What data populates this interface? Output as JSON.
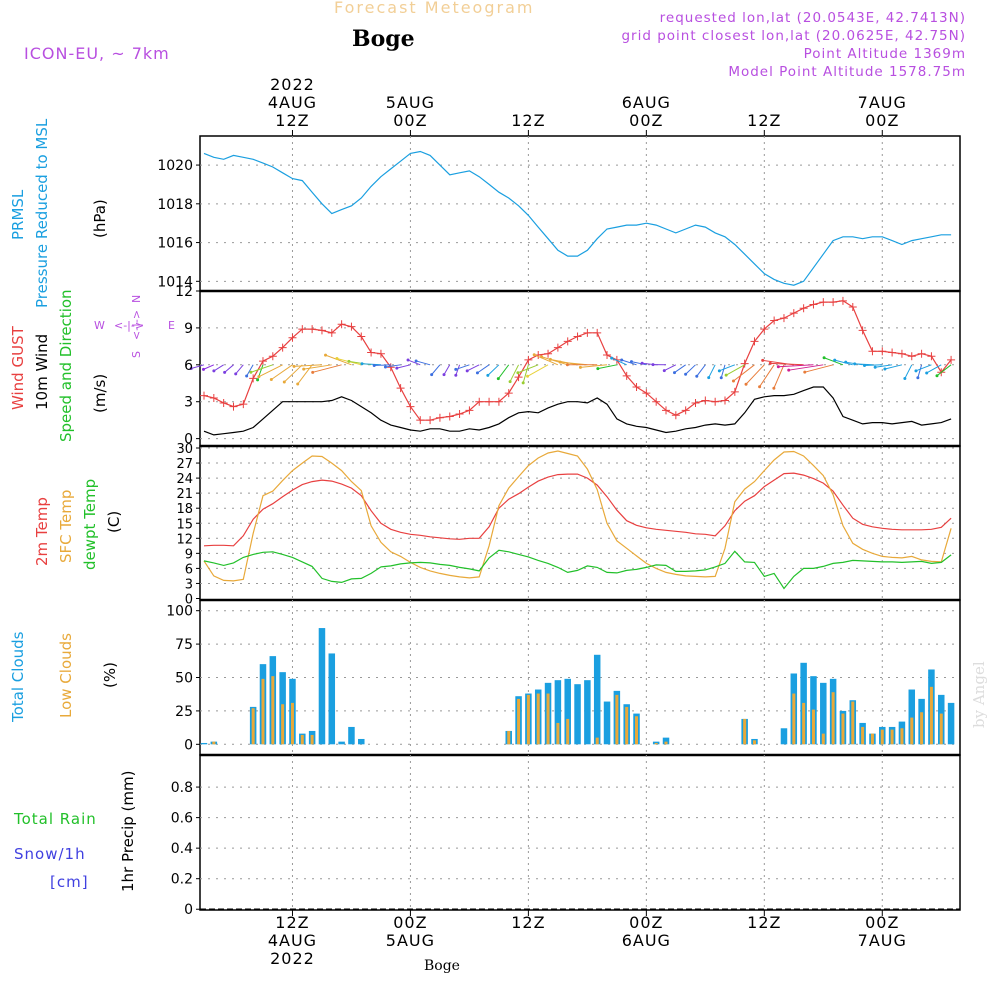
{
  "header": {
    "title": "Forecast Meteogram",
    "location": "Boge",
    "model": "ICON-EU, ~ 7km",
    "requested": "requested lon,lat (20.0543E, 42.7413N)",
    "grid_point": "grid point closest lon,lat (20.0625E, 42.75N)",
    "point_altitude": "Point Altitude 1369m",
    "model_altitude": "Model Point Altitude 1578.75m"
  },
  "top_axis": {
    "labels": [
      {
        "lines": [
          "2022",
          "4AUG",
          "12Z"
        ]
      },
      {
        "lines": [
          "5AUG",
          "00Z"
        ]
      },
      {
        "lines": [
          "12Z"
        ]
      },
      {
        "lines": [
          "6AUG",
          "00Z"
        ]
      },
      {
        "lines": [
          "12Z"
        ]
      },
      {
        "lines": [
          "7AUG",
          "00Z"
        ]
      }
    ]
  },
  "bottom_axis": {
    "labels": [
      {
        "lines": [
          "12Z",
          "4AUG",
          "2022"
        ]
      },
      {
        "lines": [
          "00Z",
          "5AUG"
        ]
      },
      {
        "lines": [
          "12Z"
        ]
      },
      {
        "lines": [
          "00Z",
          "6AUG"
        ]
      },
      {
        "lines": [
          "12Z"
        ]
      },
      {
        "lines": [
          "00Z",
          "7AUG"
        ]
      }
    ],
    "location": "Boge"
  },
  "panel_labels": {
    "pressure": [
      {
        "text": "PRMSL",
        "color": "#1a9fe0"
      },
      {
        "text": "Pressure Reduced to MSL",
        "color": "#1a9fe0"
      },
      {
        "text": "(hPa)",
        "color": "#000000"
      }
    ],
    "wind": [
      {
        "text": "Wind GUST",
        "color": "#e84040"
      },
      {
        "text": "10m Wind",
        "color": "#000000"
      },
      {
        "text": "Speed and Direction",
        "color": "#22c02a"
      },
      {
        "text": "(m/s)",
        "color": "#000000"
      }
    ],
    "wind_compass": {
      "n": "N",
      "s": "S",
      "w": "W",
      "e": "E",
      "arrow_h": "<-|->",
      "arrow_v": "<-|->",
      "color": "#b84fe0"
    },
    "temp": [
      {
        "text": "2m Temp",
        "color": "#e84040"
      },
      {
        "text": "SFC Temp",
        "color": "#e8a93a"
      },
      {
        "text": "dewpt Temp",
        "color": "#22c02a"
      },
      {
        "text": "(C)",
        "color": "#000000"
      }
    ],
    "clouds": [
      {
        "text": "Total Clouds",
        "color": "#1a9fe0"
      },
      {
        "text": "Low Clouds",
        "color": "#e8a93a"
      },
      {
        "text": "(%)",
        "color": "#000000"
      }
    ],
    "precip_left": [
      {
        "text": "Total  Rain",
        "color": "#22c02a"
      },
      {
        "text": "Snow/1h",
        "color": "#4040e0"
      },
      {
        "text": "[cm]",
        "color": "#4040e0"
      }
    ],
    "precip_axis": {
      "text": "1hr Precip (mm)",
      "color": "#000000"
    }
  },
  "watermark": "by Angel",
  "chart_data": [
    {
      "type": "line",
      "name": "pressure",
      "x_hours": [
        0,
        1,
        2,
        3,
        4,
        5,
        6,
        7,
        8,
        9,
        10,
        11,
        12,
        13,
        14,
        15,
        16,
        17,
        18,
        19,
        20,
        21,
        22,
        23,
        24,
        25,
        26,
        27,
        28,
        29,
        30,
        31,
        32,
        33,
        34,
        35,
        36,
        37,
        38,
        39,
        40,
        41,
        42,
        43,
        44,
        45,
        46,
        47,
        48,
        49,
        50,
        51,
        52,
        53,
        54,
        55,
        56,
        57,
        58,
        59,
        60,
        61,
        62,
        63,
        64,
        65,
        66,
        67,
        68,
        69,
        70,
        71,
        72,
        73,
        74,
        75,
        76
      ],
      "series": [
        {
          "name": "PRMSL",
          "color": "#1a9fe0",
          "values": [
            1020.6,
            1020.4,
            1020.3,
            1020.5,
            1020.4,
            1020.3,
            1020.1,
            1019.9,
            1019.6,
            1019.3,
            1019.2,
            1018.6,
            1018.0,
            1017.5,
            1017.7,
            1017.9,
            1018.3,
            1018.9,
            1019.4,
            1019.8,
            1020.2,
            1020.6,
            1020.7,
            1020.5,
            1020.0,
            1019.5,
            1019.6,
            1019.7,
            1019.4,
            1019.0,
            1018.6,
            1018.3,
            1017.9,
            1017.4,
            1016.8,
            1016.2,
            1015.6,
            1015.3,
            1015.3,
            1015.6,
            1016.2,
            1016.7,
            1016.8,
            1016.9,
            1016.9,
            1017.0,
            1016.9,
            1016.7,
            1016.5,
            1016.7,
            1016.9,
            1016.8,
            1016.5,
            1016.3,
            1015.9,
            1015.4,
            1014.9,
            1014.4,
            1014.1,
            1013.9,
            1013.8,
            1014.0,
            1014.7,
            1015.4,
            1016.1,
            1016.3,
            1016.3,
            1016.2,
            1016.3,
            1016.3,
            1016.1,
            1015.9,
            1016.1,
            1016.2,
            1016.3,
            1016.4,
            1016.4
          ]
        }
      ],
      "ylim": [
        1013.5,
        1021.5
      ],
      "yticks": [
        1014,
        1016,
        1018,
        1020
      ]
    },
    {
      "type": "line",
      "name": "wind",
      "x_hours": [
        0,
        1,
        2,
        3,
        4,
        5,
        6,
        7,
        8,
        9,
        10,
        11,
        12,
        13,
        14,
        15,
        16,
        17,
        18,
        19,
        20,
        21,
        22,
        23,
        24,
        25,
        26,
        27,
        28,
        29,
        30,
        31,
        32,
        33,
        34,
        35,
        36,
        37,
        38,
        39,
        40,
        41,
        42,
        43,
        44,
        45,
        46,
        47,
        48,
        49,
        50,
        51,
        52,
        53,
        54,
        55,
        56,
        57,
        58,
        59,
        60,
        61,
        62,
        63,
        64,
        65,
        66,
        67,
        68,
        69,
        70,
        71,
        72,
        73,
        74,
        75,
        76
      ],
      "series": [
        {
          "name": "Wind GUST",
          "color": "#e84040",
          "values": [
            3.5,
            3.3,
            2.9,
            2.6,
            2.8,
            4.9,
            6.3,
            6.7,
            7.4,
            8.2,
            8.9,
            8.9,
            8.8,
            8.6,
            9.3,
            9.1,
            8.3,
            7.0,
            6.9,
            5.8,
            4.1,
            2.6,
            1.5,
            1.5,
            1.7,
            1.8,
            2.0,
            2.3,
            3.0,
            3.0,
            3.0,
            3.7,
            5.0,
            6.4,
            6.8,
            6.9,
            7.4,
            7.9,
            8.3,
            8.6,
            8.6,
            6.8,
            6.4,
            5.1,
            4.2,
            3.7,
            3.0,
            2.3,
            1.9,
            2.3,
            2.9,
            3.1,
            3.0,
            3.1,
            3.8,
            6.1,
            7.9,
            8.9,
            9.6,
            9.8,
            10.2,
            10.6,
            10.9,
            11.1,
            11.1,
            11.2,
            10.7,
            8.8,
            7.1,
            7.1,
            7.0,
            6.9,
            6.7,
            6.9,
            6.7,
            5.4,
            6.4
          ]
        },
        {
          "name": "10m Wind",
          "color": "#000000",
          "values": [
            0.6,
            0.3,
            0.4,
            0.5,
            0.6,
            0.9,
            1.6,
            2.3,
            3.0,
            3.0,
            3.0,
            3.0,
            3.0,
            3.1,
            3.4,
            3.1,
            2.6,
            2.1,
            1.5,
            1.1,
            0.9,
            0.7,
            0.6,
            0.8,
            0.8,
            0.6,
            0.6,
            0.8,
            0.7,
            0.9,
            1.2,
            1.7,
            2.1,
            2.2,
            2.1,
            2.5,
            2.8,
            3.0,
            3.0,
            2.9,
            3.3,
            2.8,
            1.6,
            1.2,
            1.0,
            0.9,
            0.7,
            0.5,
            0.6,
            0.8,
            0.9,
            1.1,
            1.2,
            1.1,
            1.2,
            2.1,
            3.2,
            3.4,
            3.5,
            3.5,
            3.6,
            3.9,
            4.2,
            4.2,
            3.3,
            1.8,
            1.5,
            1.2,
            1.3,
            1.3,
            1.2,
            1.3,
            1.4,
            1.1,
            1.2,
            1.3,
            1.6
          ]
        }
      ],
      "ylim": [
        0,
        12
      ],
      "yticks": [
        0,
        3,
        6,
        9,
        12
      ]
    },
    {
      "type": "line",
      "name": "temperature",
      "x_hours": [
        0,
        1,
        2,
        3,
        4,
        5,
        6,
        7,
        8,
        9,
        10,
        11,
        12,
        13,
        14,
        15,
        16,
        17,
        18,
        19,
        20,
        21,
        22,
        23,
        24,
        25,
        26,
        27,
        28,
        29,
        30,
        31,
        32,
        33,
        34,
        35,
        36,
        37,
        38,
        39,
        40,
        41,
        42,
        43,
        44,
        45,
        46,
        47,
        48,
        49,
        50,
        51,
        52,
        53,
        54,
        55,
        56,
        57,
        58,
        59,
        60,
        61,
        62,
        63,
        64,
        65,
        66,
        67,
        68,
        69,
        70,
        71,
        72,
        73,
        74,
        75,
        76
      ],
      "series": [
        {
          "name": "2m Temp",
          "color": "#e84040",
          "values": [
            10.5,
            10.6,
            10.6,
            10.5,
            12.5,
            15.8,
            17.8,
            18.9,
            20.3,
            21.6,
            22.7,
            23.3,
            23.6,
            23.4,
            22.8,
            22.0,
            20.5,
            17.5,
            15.0,
            13.8,
            13.2,
            12.8,
            12.6,
            12.3,
            12.1,
            11.9,
            11.8,
            12.0,
            12.0,
            14.3,
            18.0,
            19.8,
            20.9,
            22.2,
            23.4,
            24.2,
            24.7,
            24.8,
            24.8,
            24.0,
            22.6,
            20.3,
            17.6,
            15.5,
            14.6,
            14.1,
            13.8,
            13.6,
            13.4,
            13.2,
            12.9,
            12.8,
            12.5,
            14.5,
            17.5,
            19.4,
            20.5,
            22.3,
            23.6,
            24.9,
            25.0,
            24.6,
            23.9,
            23.0,
            21.4,
            18.6,
            16.0,
            14.8,
            14.3,
            14.0,
            13.8,
            13.7,
            13.7,
            13.7,
            13.8,
            14.2,
            16.0
          ]
        },
        {
          "name": "SFC Temp",
          "color": "#e8a93a",
          "values": [
            7.5,
            4.5,
            3.6,
            3.5,
            3.8,
            13.0,
            20.5,
            21.4,
            23.5,
            25.5,
            27.0,
            28.4,
            28.3,
            27.0,
            25.5,
            23.3,
            21.5,
            14.5,
            11.2,
            9.3,
            8.4,
            7.2,
            6.2,
            5.5,
            5.0,
            4.6,
            4.3,
            4.1,
            4.3,
            10.5,
            18.5,
            22.0,
            24.3,
            26.5,
            28.0,
            29.0,
            29.4,
            28.9,
            28.4,
            25.8,
            21.7,
            15.0,
            11.5,
            10.0,
            8.5,
            7.0,
            6.0,
            5.2,
            4.8,
            4.5,
            4.4,
            4.3,
            4.4,
            10.0,
            19.3,
            21.8,
            23.3,
            25.5,
            27.6,
            29.2,
            29.3,
            28.4,
            26.5,
            24.5,
            20.7,
            14.5,
            11.0,
            9.8,
            9.0,
            8.4,
            8.2,
            8.1,
            8.4,
            7.7,
            7.4,
            7.3,
            14.0
          ]
        },
        {
          "name": "dewpt Temp",
          "color": "#22c02a",
          "values": [
            7.5,
            7.1,
            6.6,
            7.1,
            8.2,
            8.8,
            9.2,
            9.3,
            8.8,
            8.2,
            7.3,
            6.4,
            4.0,
            3.4,
            3.2,
            3.9,
            4.0,
            5.0,
            6.3,
            6.5,
            6.9,
            7.1,
            7.2,
            7.1,
            6.8,
            6.6,
            6.2,
            5.9,
            5.5,
            8.1,
            9.6,
            9.3,
            8.8,
            8.3,
            7.6,
            7.0,
            6.2,
            5.2,
            5.6,
            6.5,
            6.2,
            5.2,
            5.1,
            5.6,
            5.8,
            6.2,
            6.7,
            6.6,
            5.4,
            5.4,
            5.5,
            5.7,
            6.3,
            7.0,
            9.4,
            7.3,
            7.2,
            4.4,
            5.0,
            2.0,
            4.4,
            6.0,
            6.0,
            6.4,
            7.0,
            7.2,
            7.6,
            7.5,
            7.4,
            7.3,
            7.3,
            7.2,
            7.3,
            7.4,
            7.0,
            7.2,
            8.7
          ]
        }
      ],
      "ylim": [
        0,
        30
      ],
      "yticks": [
        0,
        3,
        6,
        9,
        12,
        15,
        18,
        21,
        24,
        27,
        30
      ]
    },
    {
      "type": "bar",
      "name": "clouds",
      "x_hours": [
        0,
        1,
        2,
        3,
        4,
        5,
        6,
        7,
        8,
        9,
        10,
        11,
        12,
        13,
        14,
        15,
        16,
        17,
        18,
        19,
        20,
        21,
        22,
        23,
        24,
        25,
        26,
        27,
        28,
        29,
        30,
        31,
        32,
        33,
        34,
        35,
        36,
        37,
        38,
        39,
        40,
        41,
        42,
        43,
        44,
        45,
        46,
        47,
        48,
        49,
        50,
        51,
        52,
        53,
        54,
        55,
        56,
        57,
        58,
        59,
        60,
        61,
        62,
        63,
        64,
        65,
        66,
        67,
        68,
        69,
        70,
        71,
        72,
        73,
        74,
        75,
        76
      ],
      "series": [
        {
          "name": "Total Clouds",
          "color": "#1a9fe0",
          "values": [
            1,
            2,
            0,
            0,
            0,
            28,
            60,
            66,
            54,
            49,
            8,
            10,
            87,
            68,
            2,
            13,
            4,
            0,
            0,
            0,
            0,
            0,
            0,
            0,
            0,
            0,
            0,
            0,
            0,
            0,
            0,
            10,
            36,
            38,
            41,
            46,
            48,
            49,
            45,
            48,
            67,
            32,
            40,
            30,
            23,
            0,
            2,
            5,
            0,
            0,
            0,
            0,
            0,
            0,
            0,
            19,
            4,
            0,
            0,
            12,
            53,
            61,
            51,
            46,
            49,
            25,
            33,
            16,
            8,
            13,
            13,
            17,
            41,
            34,
            56,
            37,
            31
          ]
        },
        {
          "name": "Low Clouds",
          "color": "#e8a93a",
          "values": [
            0,
            2,
            0,
            0,
            0,
            27,
            49,
            51,
            30,
            31,
            7,
            7,
            0,
            0,
            0,
            0,
            0,
            0,
            0,
            0,
            0,
            0,
            0,
            0,
            0,
            0,
            0,
            0,
            0,
            0,
            0,
            10,
            34,
            37,
            38,
            38,
            16,
            19,
            0,
            0,
            5,
            0,
            37,
            28,
            21,
            0,
            1,
            2,
            0,
            0,
            0,
            0,
            0,
            0,
            0,
            19,
            3,
            0,
            0,
            0,
            38,
            31,
            26,
            8,
            39,
            23,
            32,
            13,
            8,
            11,
            11,
            12,
            20,
            24,
            43,
            23,
            0
          ]
        }
      ],
      "ylim": [
        0,
        100
      ],
      "yticks": [
        0,
        25,
        50,
        75,
        100
      ]
    },
    {
      "type": "bar",
      "name": "precipitation",
      "x_hours": [
        0,
        76
      ],
      "series": [
        {
          "name": "Total Rain",
          "color": "#22c02a",
          "values": [
            0,
            0
          ]
        }
      ],
      "ylim": [
        0,
        1.0
      ],
      "yticks": [
        0,
        0.2,
        0.4,
        0.6,
        0.8
      ]
    }
  ]
}
